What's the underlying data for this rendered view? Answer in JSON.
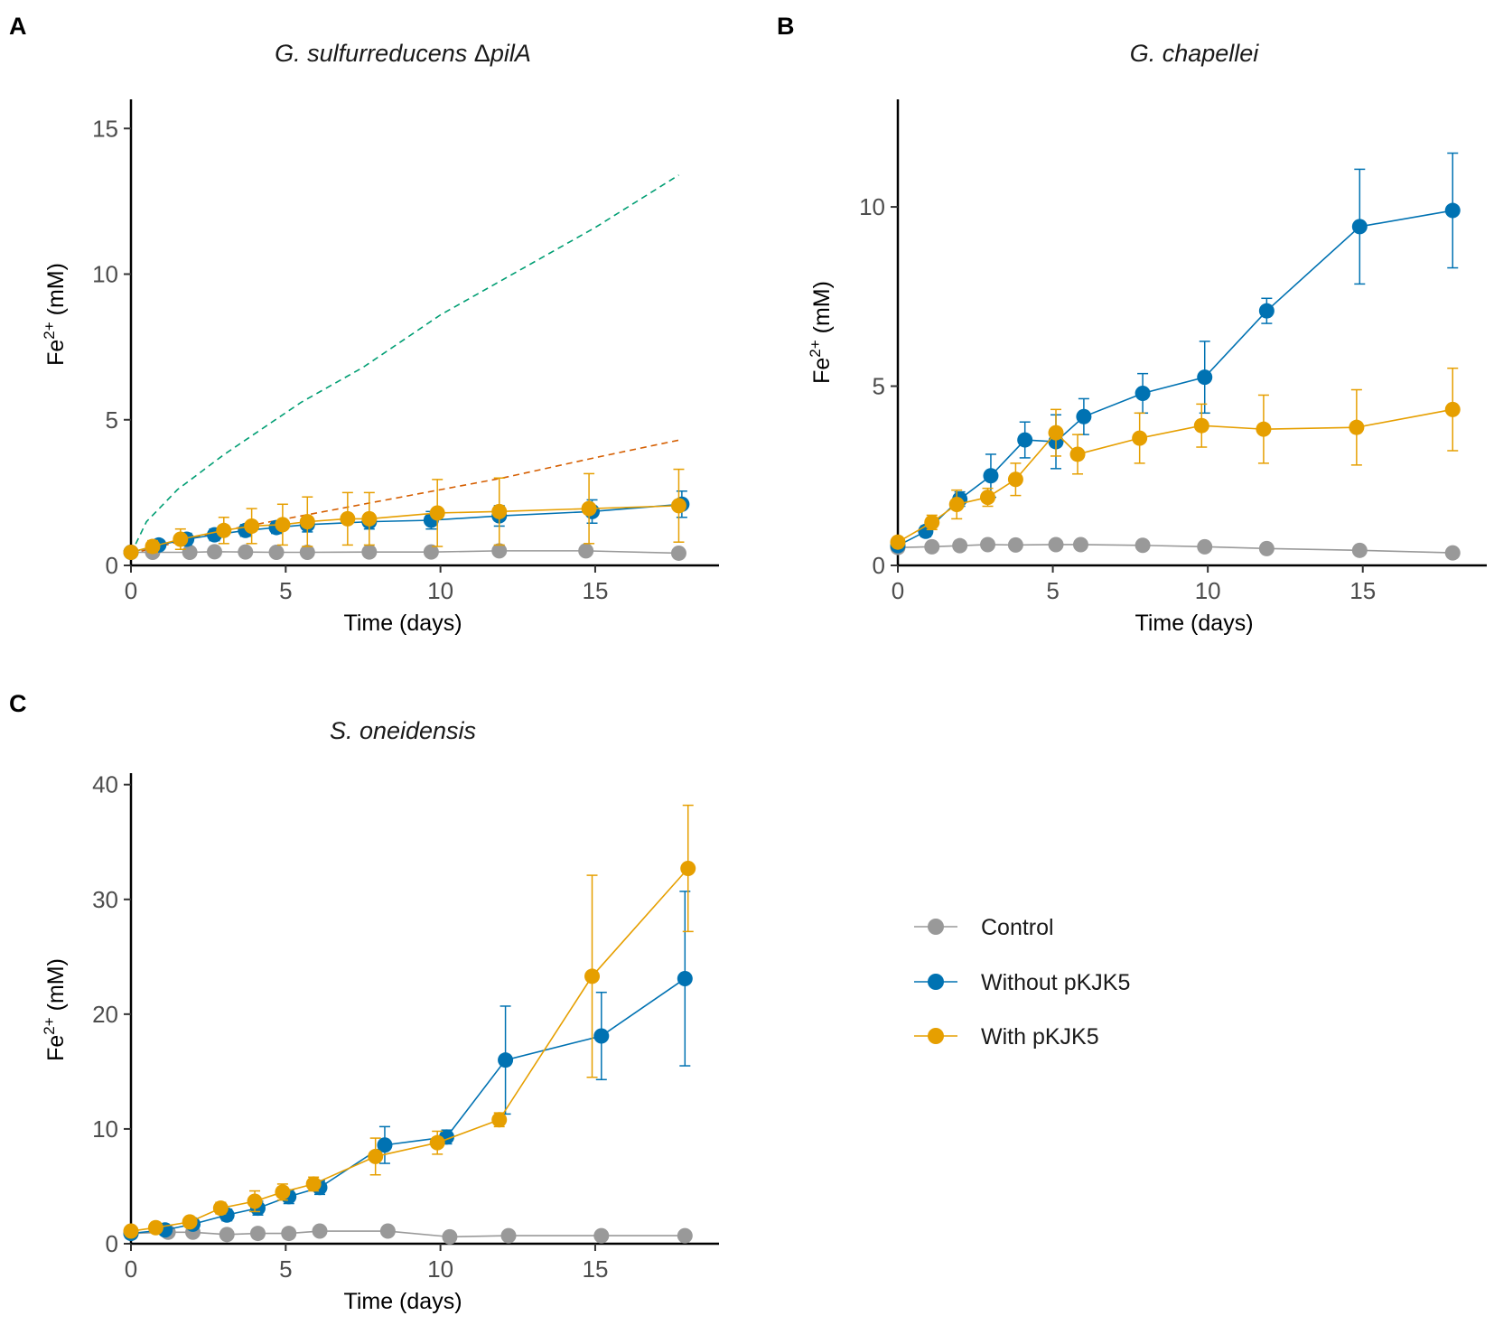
{
  "series_styles": {
    "control": {
      "label": "Control",
      "color": "#999999"
    },
    "without": {
      "label": "Without pKJK5",
      "color": "#0072B2"
    },
    "with": {
      "label": "With pKJK5",
      "color": "#E69F00"
    }
  },
  "dashed_colors": {
    "green": "#009E73",
    "orange": "#D55E00"
  },
  "legend": {
    "items": [
      {
        "key": "control",
        "label": "Control"
      },
      {
        "key": "without",
        "label": "Without pKJK5"
      },
      {
        "key": "with",
        "label": "With pKJK5"
      }
    ]
  },
  "chart_data": [
    {
      "type": "line",
      "panel": "A",
      "title_parts": [
        "G. sulfurreducens ",
        "Δ",
        "pilA"
      ],
      "xlabel": "Time (days)",
      "ylabel_base": "Fe",
      "ylabel_sup": "2+",
      "ylabel_unit": " (mM)",
      "xlim": [
        0,
        19
      ],
      "ylim": [
        0,
        16
      ],
      "xticks": [
        0,
        5,
        10,
        15
      ],
      "yticks": [
        0,
        5,
        10,
        15
      ],
      "series": [
        {
          "key": "control",
          "name": "Control",
          "x": [
            0.0,
            0.7,
            1.9,
            2.7,
            3.7,
            4.7,
            5.7,
            7.7,
            9.7,
            11.9,
            14.7,
            17.7
          ],
          "y": [
            0.45,
            0.45,
            0.45,
            0.47,
            0.46,
            0.45,
            0.45,
            0.46,
            0.46,
            0.5,
            0.5,
            0.42
          ],
          "err": null
        },
        {
          "key": "without",
          "name": "Without pKJK5",
          "x": [
            0.0,
            0.9,
            1.8,
            2.7,
            3.7,
            4.7,
            5.7,
            7.7,
            9.7,
            11.9,
            14.9,
            17.8
          ],
          "y": [
            0.45,
            0.7,
            0.9,
            1.05,
            1.2,
            1.3,
            1.4,
            1.5,
            1.55,
            1.7,
            1.85,
            2.1
          ],
          "err": [
            0.1,
            0.15,
            0.2,
            0.2,
            0.2,
            0.2,
            0.25,
            0.25,
            0.3,
            0.35,
            0.4,
            0.45
          ]
        },
        {
          "key": "with",
          "name": "With pKJK5",
          "x": [
            0.0,
            0.7,
            1.6,
            3.0,
            3.9,
            4.9,
            5.7,
            7.0,
            7.7,
            9.9,
            11.9,
            14.8,
            17.7
          ],
          "y": [
            0.45,
            0.65,
            0.9,
            1.2,
            1.35,
            1.4,
            1.5,
            1.6,
            1.6,
            1.8,
            1.85,
            1.95,
            2.05
          ],
          "err": [
            0.15,
            0.2,
            0.35,
            0.45,
            0.6,
            0.7,
            0.85,
            0.9,
            0.9,
            1.15,
            1.15,
            1.2,
            1.25
          ]
        }
      ],
      "dashed": [
        {
          "color_key": "green",
          "x": [
            0,
            0.5,
            1.5,
            3,
            5.5,
            7.5,
            10,
            12.5,
            15,
            17.7
          ],
          "y": [
            0.4,
            1.5,
            2.6,
            3.8,
            5.6,
            6.8,
            8.6,
            10.1,
            11.6,
            13.4
          ]
        },
        {
          "color_key": "orange",
          "x": [
            0,
            3,
            6,
            9,
            12,
            15,
            17.7
          ],
          "y": [
            0.4,
            1.2,
            1.8,
            2.4,
            3.0,
            3.7,
            4.3
          ]
        }
      ]
    },
    {
      "type": "line",
      "panel": "B",
      "title_parts": [
        "G. chapellei"
      ],
      "xlabel": "Time (days)",
      "ylabel_base": "Fe",
      "ylabel_sup": "2+",
      "ylabel_unit": " (mM)",
      "xlim": [
        0,
        19
      ],
      "ylim": [
        0,
        13
      ],
      "xticks": [
        0,
        5,
        10,
        15
      ],
      "yticks": [
        0,
        5,
        10
      ],
      "series": [
        {
          "key": "control",
          "name": "Control",
          "x": [
            0.0,
            1.1,
            2.0,
            2.9,
            3.8,
            5.1,
            5.9,
            7.9,
            9.9,
            11.9,
            14.9,
            17.9
          ],
          "y": [
            0.5,
            0.52,
            0.55,
            0.58,
            0.57,
            0.58,
            0.58,
            0.56,
            0.52,
            0.47,
            0.42,
            0.35
          ],
          "err": null
        },
        {
          "key": "without",
          "name": "Without pKJK5",
          "x": [
            0.0,
            0.9,
            2.0,
            3.0,
            4.1,
            5.1,
            6.0,
            7.9,
            9.9,
            11.9,
            14.9,
            17.9
          ],
          "y": [
            0.55,
            0.95,
            1.85,
            2.5,
            3.5,
            3.45,
            4.15,
            4.8,
            5.25,
            7.1,
            9.45,
            9.9
          ],
          "err": [
            0.1,
            0.15,
            0.2,
            0.6,
            0.5,
            0.75,
            0.5,
            0.55,
            1.0,
            0.35,
            1.6,
            1.6
          ]
        },
        {
          "key": "with",
          "name": "With pKJK5",
          "x": [
            0.0,
            1.1,
            1.9,
            2.9,
            3.8,
            5.1,
            5.8,
            7.8,
            9.8,
            11.8,
            14.8,
            17.9
          ],
          "y": [
            0.65,
            1.2,
            1.7,
            1.9,
            2.4,
            3.7,
            3.1,
            3.55,
            3.9,
            3.8,
            3.85,
            4.35
          ],
          "err": [
            0.1,
            0.2,
            0.4,
            0.25,
            0.45,
            0.65,
            0.55,
            0.7,
            0.6,
            0.95,
            1.05,
            1.15
          ]
        }
      ],
      "dashed": []
    },
    {
      "type": "line",
      "panel": "C",
      "title_parts": [
        "S. oneidensis"
      ],
      "xlabel": "Time (days)",
      "ylabel_base": "Fe",
      "ylabel_sup": "2+",
      "ylabel_unit": " (mM)",
      "xlim": [
        0,
        19
      ],
      "ylim": [
        0,
        41
      ],
      "xticks": [
        0,
        5,
        10,
        15
      ],
      "yticks": [
        0,
        10,
        20,
        30,
        40
      ],
      "series": [
        {
          "key": "control",
          "name": "Control",
          "x": [
            0.0,
            1.2,
            2.0,
            3.1,
            4.1,
            5.1,
            6.1,
            8.3,
            10.3,
            12.2,
            15.2,
            17.9
          ],
          "y": [
            0.9,
            1.0,
            1.0,
            0.8,
            0.9,
            0.9,
            1.1,
            1.1,
            0.6,
            0.7,
            0.7,
            0.7
          ],
          "err": null
        },
        {
          "key": "without",
          "name": "Without pKJK5",
          "x": [
            0.0,
            1.1,
            2.0,
            3.1,
            4.1,
            5.1,
            6.1,
            8.2,
            10.2,
            12.1,
            15.2,
            17.9
          ],
          "y": [
            0.9,
            1.2,
            1.7,
            2.5,
            3.1,
            4.1,
            4.9,
            8.6,
            9.3,
            16.0,
            18.1,
            23.1
          ],
          "err": [
            0.2,
            0.3,
            0.3,
            0.5,
            0.6,
            0.6,
            0.6,
            1.6,
            0.6,
            4.7,
            3.8,
            7.6
          ]
        },
        {
          "key": "with",
          "name": "With pKJK5",
          "x": [
            0.0,
            0.8,
            1.9,
            2.9,
            4.0,
            4.9,
            5.9,
            7.9,
            9.9,
            11.9,
            14.9,
            18.0
          ],
          "y": [
            1.1,
            1.4,
            1.9,
            3.1,
            3.7,
            4.5,
            5.2,
            7.6,
            8.8,
            10.8,
            23.3,
            32.7
          ],
          "err": [
            0.2,
            0.3,
            0.4,
            0.5,
            0.9,
            0.7,
            0.6,
            1.6,
            1.0,
            0.6,
            8.8,
            5.5
          ]
        }
      ],
      "dashed": []
    }
  ]
}
